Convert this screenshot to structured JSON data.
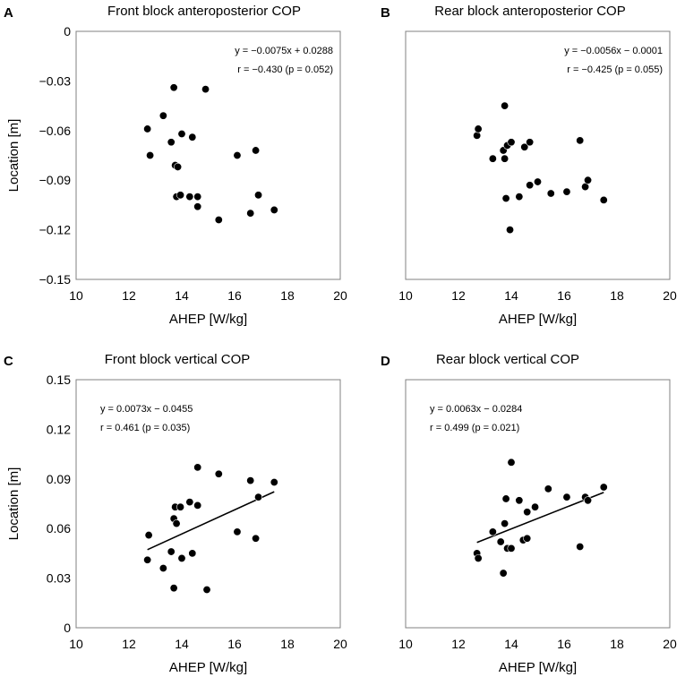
{
  "chart_data": [
    {
      "type": "scatter",
      "panel": "A",
      "title": "Front block anteroposterior COP",
      "xlabel": "AHEP [W/kg]",
      "ylabel": "Location [m]",
      "xlim": [
        10,
        20
      ],
      "ylim": [
        -0.15,
        0
      ],
      "xticks": [
        10,
        12,
        14,
        16,
        18,
        20
      ],
      "yticks": [
        0,
        -0.03,
        -0.06,
        -0.09,
        -0.12,
        -0.15
      ],
      "xtick_labels": [
        "10",
        "12",
        "14",
        "16",
        "18",
        "20"
      ],
      "ytick_labels": [
        "0",
        "-0.03",
        "-0.06",
        "-0.09",
        "-0.12",
        "-0.15"
      ],
      "equation": "y = −0.0075x + 0.0288",
      "stats": "r = −0.430 (p = 0.052)",
      "annotation_position": "top-right",
      "trendline": false,
      "slope": -0.0075,
      "intercept": 0.0288,
      "points": [
        [
          12.7,
          -0.059
        ],
        [
          12.8,
          -0.075
        ],
        [
          13.3,
          -0.051
        ],
        [
          13.6,
          -0.067
        ],
        [
          13.7,
          -0.034
        ],
        [
          13.75,
          -0.081
        ],
        [
          13.85,
          -0.082
        ],
        [
          13.8,
          -0.1
        ],
        [
          14.0,
          -0.062
        ],
        [
          13.95,
          -0.099
        ],
        [
          14.3,
          -0.1
        ],
        [
          14.4,
          -0.064
        ],
        [
          14.6,
          -0.1
        ],
        [
          14.6,
          -0.106
        ],
        [
          14.9,
          -0.035
        ],
        [
          15.4,
          -0.114
        ],
        [
          16.1,
          -0.075
        ],
        [
          16.6,
          -0.11
        ],
        [
          16.8,
          -0.072
        ],
        [
          16.9,
          -0.099
        ],
        [
          17.5,
          -0.108
        ]
      ]
    },
    {
      "type": "scatter",
      "panel": "B",
      "title": "Rear block anteroposterior COP",
      "xlabel": "AHEP [W/kg]",
      "ylabel": "",
      "xlim": [
        10,
        20
      ],
      "ylim": [
        -0.15,
        0
      ],
      "xticks": [
        10,
        12,
        14,
        16,
        18,
        20
      ],
      "yticks": [
        0,
        -0.03,
        -0.06,
        -0.09,
        -0.12,
        -0.15
      ],
      "xtick_labels": [
        "10",
        "12",
        "14",
        "16",
        "18",
        "20"
      ],
      "ytick_labels": [],
      "equation": "y = −0.0056x − 0.0001",
      "stats": "r = −0.425 (p = 0.055)",
      "annotation_position": "top-right",
      "trendline": false,
      "slope": -0.0056,
      "intercept": -0.0001,
      "points": [
        [
          12.7,
          -0.063
        ],
        [
          12.75,
          -0.059
        ],
        [
          13.3,
          -0.077
        ],
        [
          13.7,
          -0.072
        ],
        [
          13.75,
          -0.045
        ],
        [
          13.75,
          -0.077
        ],
        [
          13.85,
          -0.069
        ],
        [
          14.0,
          -0.067
        ],
        [
          13.8,
          -0.101
        ],
        [
          13.95,
          -0.12
        ],
        [
          14.3,
          -0.1
        ],
        [
          14.5,
          -0.07
        ],
        [
          14.7,
          -0.067
        ],
        [
          14.7,
          -0.093
        ],
        [
          15.0,
          -0.091
        ],
        [
          15.5,
          -0.098
        ],
        [
          16.1,
          -0.097
        ],
        [
          16.6,
          -0.066
        ],
        [
          16.8,
          -0.094
        ],
        [
          16.9,
          -0.09
        ],
        [
          17.5,
          -0.102
        ]
      ]
    },
    {
      "type": "scatter",
      "panel": "C",
      "title": "Front block vertical COP",
      "xlabel": "AHEP [W/kg]",
      "ylabel": "Location [m]",
      "xlim": [
        10,
        20
      ],
      "ylim": [
        0,
        0.15
      ],
      "xticks": [
        10,
        12,
        14,
        16,
        18,
        20
      ],
      "yticks": [
        0,
        0.03,
        0.06,
        0.09,
        0.12,
        0.15
      ],
      "xtick_labels": [
        "10",
        "12",
        "14",
        "16",
        "18",
        "20"
      ],
      "ytick_labels": [
        "0",
        "0.03",
        "0.06",
        "0.09",
        "0.12",
        "0.15"
      ],
      "equation": "y = 0.0073x − 0.0455",
      "stats": "r = 0.461 (p = 0.035)",
      "annotation_position": "top-left",
      "trendline": true,
      "trendline_x": [
        12.7,
        17.5
      ],
      "slope": 0.0073,
      "intercept": -0.0455,
      "points": [
        [
          12.7,
          0.041
        ],
        [
          12.75,
          0.056
        ],
        [
          13.3,
          0.036
        ],
        [
          13.6,
          0.046
        ],
        [
          13.7,
          0.024
        ],
        [
          13.7,
          0.066
        ],
        [
          13.75,
          0.073
        ],
        [
          13.8,
          0.063
        ],
        [
          14.0,
          0.042
        ],
        [
          13.95,
          0.073
        ],
        [
          14.3,
          0.076
        ],
        [
          14.4,
          0.045
        ],
        [
          14.6,
          0.097
        ],
        [
          14.6,
          0.074
        ],
        [
          14.95,
          0.023
        ],
        [
          15.4,
          0.093
        ],
        [
          16.1,
          0.058
        ],
        [
          16.6,
          0.089
        ],
        [
          16.8,
          0.054
        ],
        [
          16.9,
          0.079
        ],
        [
          17.5,
          0.088
        ]
      ]
    },
    {
      "type": "scatter",
      "panel": "D",
      "title": "Rear block vertical COP",
      "xlabel": "AHEP [W/kg]",
      "ylabel": "",
      "xlim": [
        10,
        20
      ],
      "ylim": [
        0,
        0.15
      ],
      "xticks": [
        10,
        12,
        14,
        16,
        18,
        20
      ],
      "yticks": [
        0,
        0.03,
        0.06,
        0.09,
        0.12,
        0.15
      ],
      "xtick_labels": [
        "10",
        "12",
        "14",
        "16",
        "18",
        "20"
      ],
      "ytick_labels": [],
      "equation": "y = 0.0063x − 0.0284",
      "stats": "r = 0.499 (p = 0.021)",
      "annotation_position": "top-left",
      "trendline": true,
      "trendline_x": [
        12.7,
        17.5
      ],
      "slope": 0.0063,
      "intercept": -0.0284,
      "points": [
        [
          12.7,
          0.045
        ],
        [
          12.75,
          0.042
        ],
        [
          13.3,
          0.058
        ],
        [
          13.6,
          0.052
        ],
        [
          13.7,
          0.033
        ],
        [
          13.75,
          0.063
        ],
        [
          13.8,
          0.078
        ],
        [
          13.85,
          0.048
        ],
        [
          14.0,
          0.1
        ],
        [
          14.0,
          0.048
        ],
        [
          14.3,
          0.077
        ],
        [
          14.45,
          0.053
        ],
        [
          14.6,
          0.054
        ],
        [
          14.6,
          0.07
        ],
        [
          14.9,
          0.073
        ],
        [
          15.4,
          0.084
        ],
        [
          16.1,
          0.079
        ],
        [
          16.6,
          0.049
        ],
        [
          16.8,
          0.079
        ],
        [
          16.9,
          0.077
        ],
        [
          17.5,
          0.085
        ]
      ]
    }
  ]
}
